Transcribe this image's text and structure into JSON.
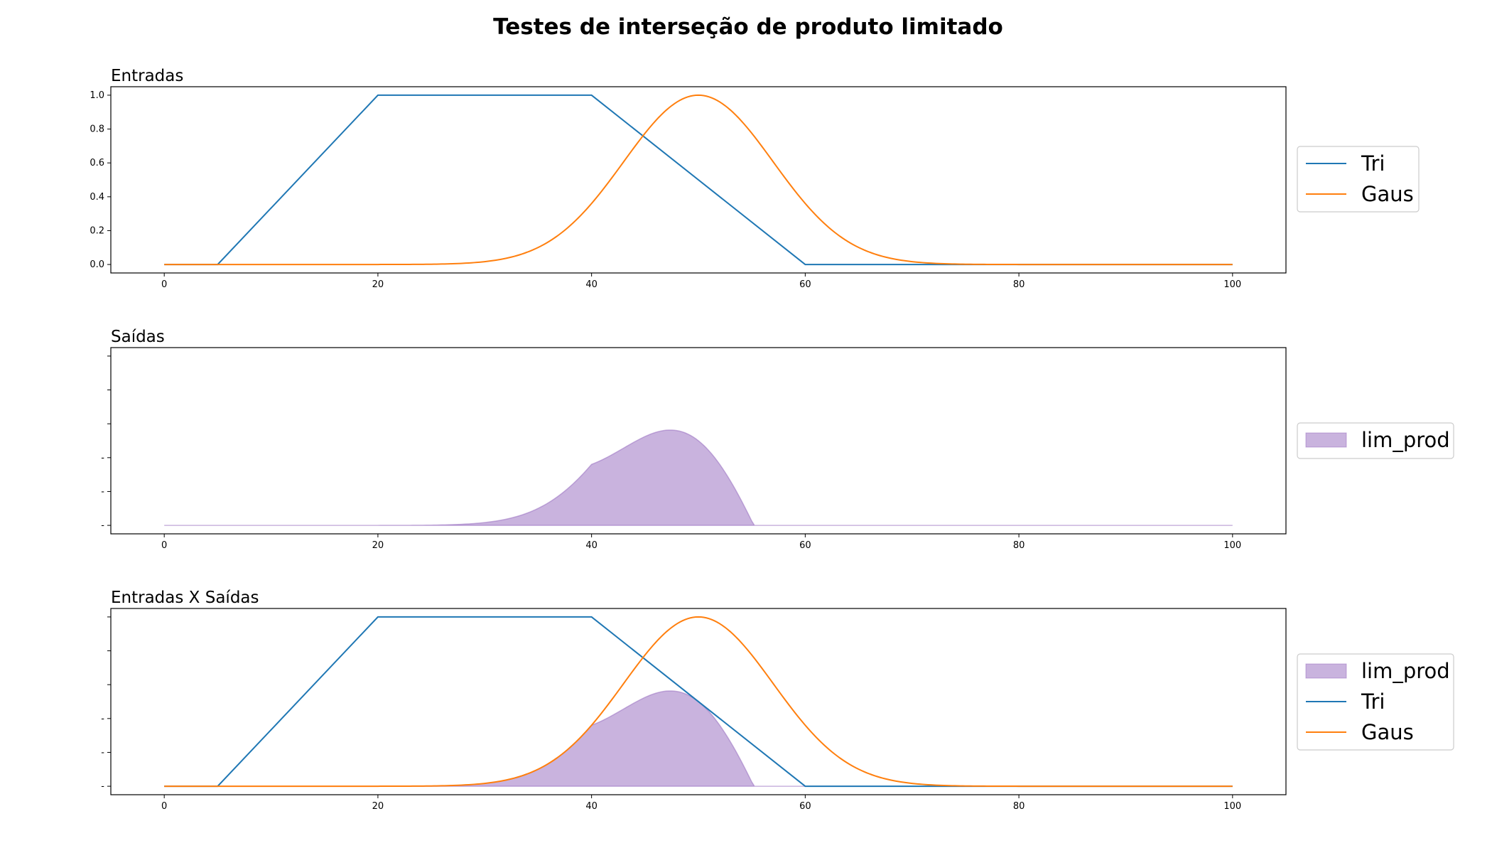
{
  "figure": {
    "title": "Testes de interseção de produto limitado"
  },
  "colors": {
    "tri": "#1f77b4",
    "gaus": "#ff7f0e",
    "lim_prod": "#9467bd"
  },
  "chart_data": [
    {
      "type": "line",
      "title": "Entradas",
      "xlabel": "",
      "ylabel": "",
      "xlim": [
        -5,
        105
      ],
      "ylim": [
        -0.05,
        1.05
      ],
      "x_ticks": [
        0,
        20,
        40,
        60,
        80,
        100
      ],
      "y_ticks": [
        0.0,
        0.2,
        0.4,
        0.6,
        0.8,
        1.0
      ],
      "y_tick_labels": [
        "0.0",
        "0.2",
        "0.4",
        "0.6",
        "0.8",
        "1.0"
      ],
      "grid": false,
      "legend": "right",
      "series": [
        {
          "name": "Tri",
          "kind": "line",
          "color": "#1f77b4",
          "x": [
            0,
            5,
            20,
            40,
            60,
            100
          ],
          "y": [
            0,
            0,
            1,
            1,
            0,
            0
          ]
        },
        {
          "name": "Gaus",
          "kind": "line",
          "color": "#ff7f0e",
          "function": "gaussian",
          "mean": 50,
          "sigma": 7,
          "x_range": [
            0,
            100
          ]
        }
      ]
    },
    {
      "type": "area",
      "title": "Saídas",
      "xlabel": "",
      "ylabel": "",
      "xlim": [
        -5,
        105
      ],
      "ylim": [
        -0.05,
        1.05
      ],
      "x_ticks": [
        0,
        20,
        40,
        60,
        80,
        100
      ],
      "y_ticks": [
        0.0,
        0.2,
        0.4,
        0.6,
        0.8,
        1.0
      ],
      "y_tick_labels": [
        "-",
        "-",
        "-",
        "",
        "",
        ""
      ],
      "grid": false,
      "legend": "right",
      "series": [
        {
          "name": "lim_prod",
          "kind": "area",
          "color": "#9467bd",
          "function": "max(0, tri + gaus - 1)",
          "x_range": [
            0,
            100
          ]
        }
      ]
    },
    {
      "type": "line",
      "title": "Entradas X Saídas",
      "xlabel": "",
      "ylabel": "",
      "xlim": [
        -5,
        105
      ],
      "ylim": [
        -0.05,
        1.05
      ],
      "x_ticks": [
        0,
        20,
        40,
        60,
        80,
        100
      ],
      "y_ticks": [
        0.0,
        0.2,
        0.4,
        0.6,
        0.8,
        1.0
      ],
      "y_tick_labels": [
        "-",
        "-",
        "-",
        "",
        "",
        ""
      ],
      "grid": false,
      "legend": "right",
      "series": [
        {
          "name": "lim_prod",
          "kind": "area",
          "color": "#9467bd",
          "function": "max(0, tri + gaus - 1)",
          "x_range": [
            0,
            100
          ]
        },
        {
          "name": "Tri",
          "kind": "line",
          "color": "#1f77b4",
          "x": [
            0,
            5,
            20,
            40,
            60,
            100
          ],
          "y": [
            0,
            0,
            1,
            1,
            0,
            0
          ]
        },
        {
          "name": "Gaus",
          "kind": "line",
          "color": "#ff7f0e",
          "function": "gaussian",
          "mean": 50,
          "sigma": 7,
          "x_range": [
            0,
            100
          ]
        }
      ]
    }
  ]
}
